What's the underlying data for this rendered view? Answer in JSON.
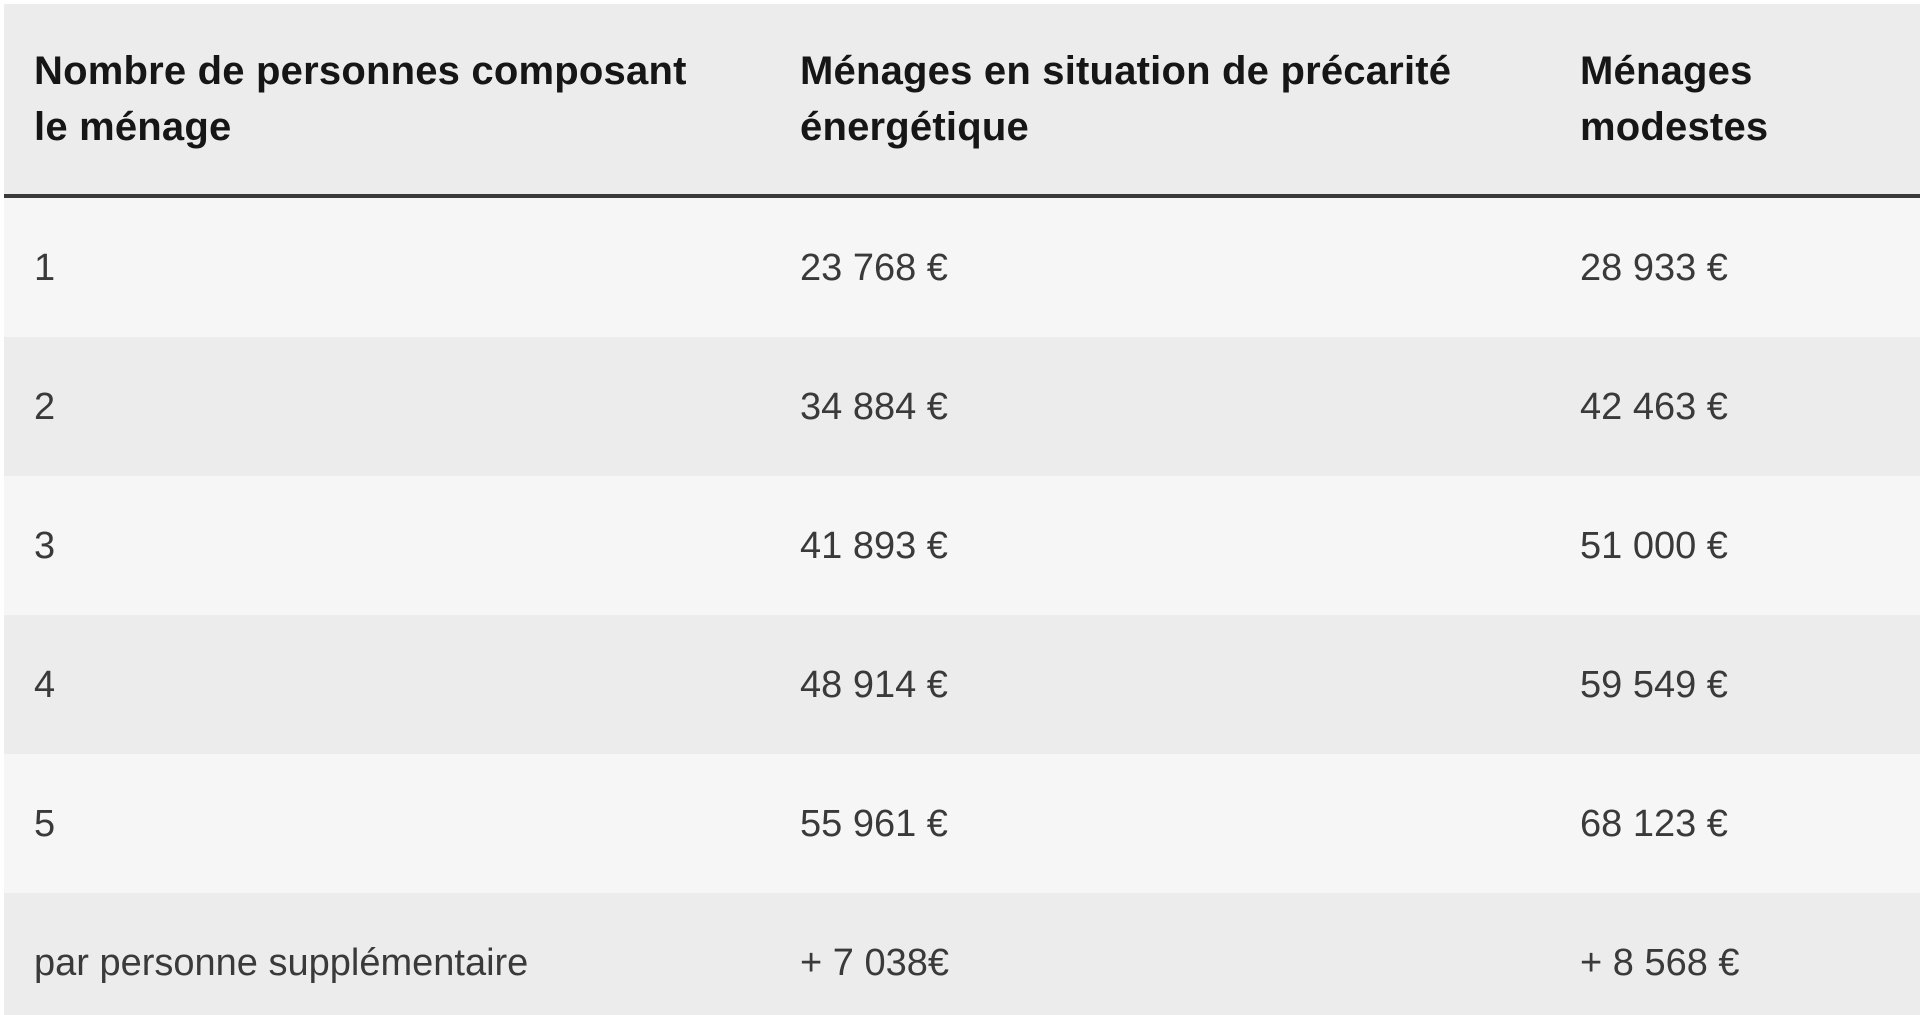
{
  "table": {
    "columns": [
      "Nombre de personnes composant\nle ménage",
      "Ménages en situation de précarité\nénergétique",
      "Ménages\nmodestes"
    ],
    "rows": [
      [
        "1",
        "23 768 €",
        "28 933 €"
      ],
      [
        "2",
        "34 884 €",
        "42 463 €"
      ],
      [
        "3",
        "41 893 €",
        "51 000 €"
      ],
      [
        "4",
        "48 914 €",
        "59 549 €"
      ],
      [
        "5",
        "55 961 €",
        "68 123 €"
      ],
      [
        "par personne supplémentaire",
        "+ 7 038€",
        "+ 8 568 €"
      ]
    ]
  },
  "chart_data": {
    "type": "table",
    "title": "",
    "columns": [
      "Nombre de personnes composant le ménage",
      "Ménages en situation de précarité énergétique",
      "Ménages modestes"
    ],
    "rows": [
      [
        "1",
        "23 768 €",
        "28 933 €"
      ],
      [
        "2",
        "34 884 €",
        "42 463 €"
      ],
      [
        "3",
        "41 893 €",
        "51 000 €"
      ],
      [
        "4",
        "48 914 €",
        "59 549 €"
      ],
      [
        "5",
        "55 961 €",
        "68 123 €"
      ],
      [
        "par personne supplémentaire",
        "+ 7 038€",
        "+ 8 568 €"
      ]
    ],
    "values_precarite_energetique_eur": [
      23768,
      34884,
      41893,
      48914,
      55961
    ],
    "values_menages_modestes_eur": [
      28933,
      42463,
      51000,
      59549,
      68123
    ],
    "increment_per_additional_person_precarite_eur": 7038,
    "increment_per_additional_person_modestes_eur": 8568
  },
  "colors": {
    "page_bg": "#ffffff",
    "header_bg": "#ececec",
    "row_light_bg": "#f6f6f6",
    "row_dark_bg": "#ececec",
    "divider": "#3a3a3a",
    "header_text": "#161616",
    "body_text": "#3a3a3a"
  }
}
